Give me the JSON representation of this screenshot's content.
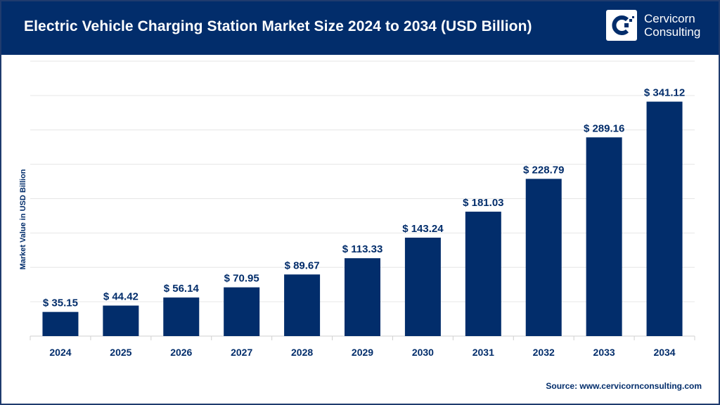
{
  "header": {
    "title": "Electric Vehicle Charging Station Market Size 2024 to 2034 (USD Billion)",
    "logo_line1": "Cervicorn",
    "logo_line2": "Consulting"
  },
  "source": "Source: www.cervicornconsulting.com",
  "colors": {
    "bar": "#022d6b",
    "header": "#022d6b",
    "grid": "#e6e6e6"
  },
  "chart_data": {
    "type": "bar",
    "title": "Electric Vehicle Charging Station Market Size 2024 to 2034 (USD Billion)",
    "xlabel": "",
    "ylabel": "Market Value in USD Billion",
    "categories": [
      "2024",
      "2025",
      "2026",
      "2027",
      "2028",
      "2029",
      "2030",
      "2031",
      "2032",
      "2033",
      "2034"
    ],
    "values": [
      35.15,
      44.42,
      56.14,
      70.95,
      89.67,
      113.33,
      143.24,
      181.03,
      228.79,
      289.16,
      341.12
    ],
    "data_labels": [
      "$ 35.15",
      "$ 44.42",
      "$ 56.14",
      "$ 70.95",
      "$ 89.67",
      "$ 113.33",
      "$ 143.24",
      "$ 181.03",
      "$ 228.79",
      "$ 289.16",
      "$ 341.12"
    ],
    "ylim": [
      0,
      400
    ],
    "grid": true,
    "y_tick_labels_shown": false
  }
}
